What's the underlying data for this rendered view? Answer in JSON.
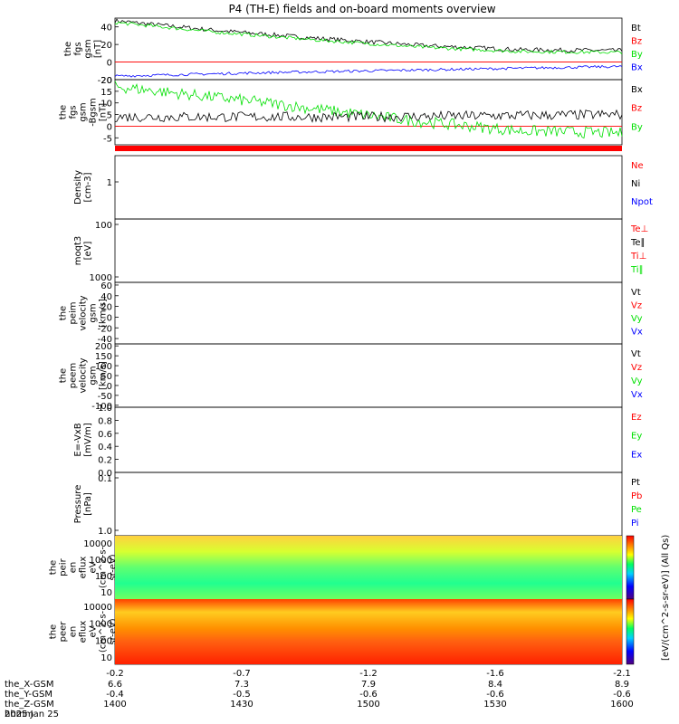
{
  "title": "P4 (TH-E) fields and on-board moments overview",
  "x_axis": {
    "labels": [
      "-0.2",
      "-0.7",
      "-1.2",
      "-1.6",
      "-2.1"
    ],
    "rows": [
      {
        "label": "the_X-GSM",
        "values": [
          "6.6",
          "7.3",
          "7.9",
          "8.4",
          "8.9"
        ]
      },
      {
        "label": "the_Y-GSM",
        "values": [
          "-0.4",
          "-0.5",
          "-0.6",
          "-0.6",
          "-0.6"
        ]
      },
      {
        "label": "the_Z-GSM",
        "values": [
          "1400",
          "1430",
          "1500",
          "1530",
          "1600"
        ]
      },
      {
        "label": "hhmm",
        "values": []
      }
    ],
    "date": "2025 Jan 25"
  },
  "colors": {
    "black": "#000000",
    "red": "#ff0000",
    "green": "#00e000",
    "blue": "#0000ff"
  },
  "chart_data": [
    {
      "id": "fgs",
      "type": "line",
      "ylabel": [
        "the",
        "fgs",
        "gsm",
        "[nT]"
      ],
      "ylim": [
        -20,
        50
      ],
      "yticks": [
        "-20",
        "0",
        "20",
        "40"
      ],
      "zero_line": true,
      "legend": [
        {
          "text": "Bt",
          "color": "#000000"
        },
        {
          "text": "Bz",
          "color": "#ff0000"
        },
        {
          "text": "By",
          "color": "#00e000"
        },
        {
          "text": "Bx",
          "color": "#0000ff"
        }
      ],
      "series": [
        {
          "name": "Bt",
          "color": "#000000",
          "points": [
            [
              0,
              47
            ],
            [
              0.2,
              36
            ],
            [
              0.4,
              27
            ],
            [
              0.6,
              19
            ],
            [
              0.8,
              14
            ],
            [
              1.0,
              13
            ]
          ],
          "noise": 2.5
        },
        {
          "name": "Bz",
          "color": "#ff0000",
          "points": [
            [
              0,
              0
            ],
            [
              1,
              0
            ]
          ],
          "noise": 0
        },
        {
          "name": "By",
          "color": "#00e000",
          "points": [
            [
              0,
              45
            ],
            [
              0.2,
              34
            ],
            [
              0.4,
              25
            ],
            [
              0.6,
              17
            ],
            [
              0.8,
              12
            ],
            [
              1.0,
              11
            ]
          ],
          "noise": 2.0
        },
        {
          "name": "Bx",
          "color": "#0000ff",
          "points": [
            [
              0,
              -16
            ],
            [
              0.3,
              -12
            ],
            [
              0.6,
              -9
            ],
            [
              1.0,
              -5
            ]
          ],
          "noise": 1.5
        }
      ]
    },
    {
      "id": "fgs-dsl",
      "type": "line",
      "ylabel": [
        "the",
        "fgs",
        "gsm",
        "-Bgsm",
        "[nT]"
      ],
      "ylim": [
        -8,
        20
      ],
      "yticks": [
        "-5",
        "0",
        "5",
        "10",
        "15",
        "20"
      ],
      "zero_line": true,
      "legend": [
        {
          "text": "Bx",
          "color": "#000000"
        },
        {
          "text": "Bz",
          "color": "#ff0000"
        },
        {
          "text": "By",
          "color": "#00e000"
        }
      ],
      "series": [
        {
          "name": "By",
          "color": "#00e000",
          "points": [
            [
              0,
              17
            ],
            [
              0.3,
              10
            ],
            [
              0.6,
              2
            ],
            [
              0.8,
              -2
            ],
            [
              1.0,
              -3
            ]
          ],
          "noise": 2.5
        },
        {
          "name": "Bx",
          "color": "#000000",
          "points": [
            [
              0,
              4
            ],
            [
              0.5,
              4
            ],
            [
              1.0,
              5
            ]
          ],
          "noise": 2.2
        }
      ]
    },
    {
      "id": "density",
      "type": "line",
      "ylabel": [
        "Density",
        "[cm-3]"
      ],
      "yscale": "log",
      "legend": [
        {
          "text": "Ne",
          "color": "#ff0000"
        },
        {
          "text": "Ni",
          "color": "#000000"
        },
        {
          "text": "Npot",
          "color": "#0000ff"
        }
      ],
      "yticks": [
        "1"
      ],
      "series": []
    },
    {
      "id": "temperature",
      "type": "line",
      "ylabel": [
        "moqt3",
        "[eV]"
      ],
      "yscale": "log",
      "legend": [
        {
          "text": "Te⊥",
          "color": "#ff0000"
        },
        {
          "text": "Te∥",
          "color": "#000000"
        },
        {
          "text": "Ti⊥",
          "color": "#ff0000"
        },
        {
          "text": "Ti∥",
          "color": "#00e000"
        }
      ],
      "yticks": [
        "1000",
        "100"
      ],
      "series": []
    },
    {
      "id": "peim-velocity",
      "type": "line",
      "ylabel": [
        "the",
        "peim",
        "velocity",
        "gsm",
        "[km/s]"
      ],
      "ylim": [
        -50,
        65
      ],
      "yticks": [
        "-40",
        "-20",
        "0",
        "20",
        "40",
        "60"
      ],
      "legend": [
        {
          "text": "Vt",
          "color": "#000000"
        },
        {
          "text": "Vz",
          "color": "#ff0000"
        },
        {
          "text": "Vy",
          "color": "#00e000"
        },
        {
          "text": "Vx",
          "color": "#0000ff"
        }
      ],
      "series": []
    },
    {
      "id": "peem-velocity",
      "type": "line",
      "ylabel": [
        "the",
        "peem",
        "velocity",
        "gsm",
        "[km/s]"
      ],
      "ylim": [
        -110,
        210
      ],
      "yticks": [
        "-100",
        "-50",
        "0",
        "50",
        "100",
        "150",
        "200"
      ],
      "legend": [
        {
          "text": "Vt",
          "color": "#000000"
        },
        {
          "text": "Vz",
          "color": "#ff0000"
        },
        {
          "text": "Vy",
          "color": "#00e000"
        },
        {
          "text": "Vx",
          "color": "#0000ff"
        }
      ],
      "series": []
    },
    {
      "id": "efield",
      "type": "line",
      "ylabel": [
        "E=-VxB",
        "[mV/m]"
      ],
      "ylim": [
        0,
        1
      ],
      "yticks": [
        "0.0",
        "0.2",
        "0.4",
        "0.6",
        "0.8",
        "1.0"
      ],
      "legend": [
        {
          "text": "Ez",
          "color": "#ff0000"
        },
        {
          "text": "Ey",
          "color": "#00e000"
        },
        {
          "text": "Ex",
          "color": "#0000ff"
        }
      ],
      "series": []
    },
    {
      "id": "pressure",
      "type": "line",
      "ylabel": [
        "Pressure",
        "[nPa]"
      ],
      "yscale": "log",
      "yticks": [
        "1.0",
        "0.1"
      ],
      "legend": [
        {
          "text": "Pt",
          "color": "#000000"
        },
        {
          "text": "Pb",
          "color": "#ff0000"
        },
        {
          "text": "Pe",
          "color": "#00e000"
        },
        {
          "text": "Pi",
          "color": "#0000ff"
        }
      ],
      "series": []
    },
    {
      "id": "peir-spec",
      "type": "heatmap",
      "ylabel": [
        "the",
        "peir",
        "en",
        "eflux",
        "eV",
        "(cm^2-s-",
        "sr-eV)"
      ],
      "yticks": [
        "10000",
        "1000",
        "100",
        "10"
      ],
      "colorbar": {
        "ticks": [
          "10^8",
          "10^6",
          "10^4",
          "10^2"
        ],
        "label": "[eV/(cm^2-s-sr-eV)] (All Qs)"
      }
    },
    {
      "id": "peer-spec",
      "type": "heatmap",
      "ylabel": [
        "the",
        "peer",
        "en",
        "eflux",
        "eV",
        "(cm^2-s-",
        "sr-eV)"
      ],
      "yticks": [
        "10000",
        "1000",
        "100",
        "10"
      ],
      "colorbar": {
        "ticks": [
          "10^7",
          "10^6",
          "10^5",
          "10^4",
          "10^3"
        ],
        "label": "[eV/(cm^2-s-sr-eV)] (All Qs)"
      }
    }
  ]
}
